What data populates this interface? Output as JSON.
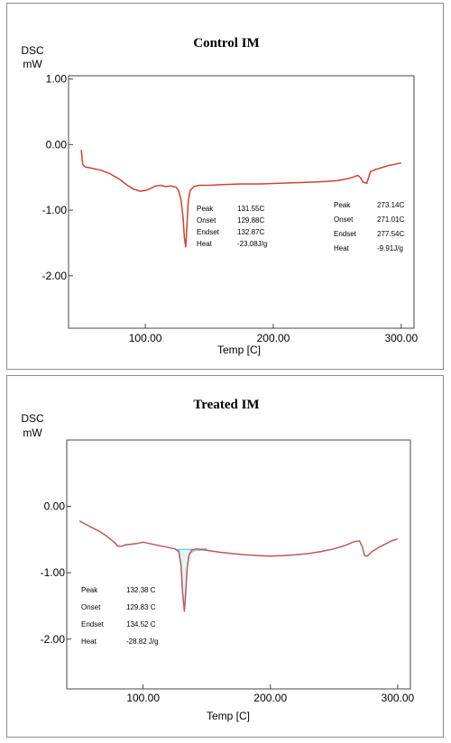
{
  "chart_data": [
    {
      "type": "line",
      "title": "Control IM",
      "ylabel": [
        "DSC",
        "mW"
      ],
      "xlabel": "Temp  [C]",
      "xlim": [
        40,
        310
      ],
      "ylim": [
        -2.8,
        1.05
      ],
      "x_ticks": [
        100,
        200,
        300
      ],
      "x_tick_labels": [
        "100.00",
        "200.00",
        "300.00"
      ],
      "y_ticks": [
        1,
        0,
        -1,
        -2
      ],
      "y_tick_labels": [
        "1.00",
        "0.00",
        "-1.00",
        "-2.00"
      ],
      "grid": false,
      "series": [
        {
          "color": "#d0422f",
          "x": [
            50,
            51,
            53,
            58,
            65,
            72,
            80,
            86,
            91,
            96,
            100,
            104,
            108,
            112,
            116,
            120,
            124,
            126,
            128,
            129.5,
            130.5,
            131.55,
            132.5,
            133.5,
            135,
            138,
            142,
            150,
            160,
            175,
            190,
            205,
            220,
            235,
            250,
            258,
            262,
            266,
            268,
            270,
            271.5,
            273.14,
            274.5,
            276,
            280,
            285,
            290,
            295,
            300
          ],
          "y": [
            -0.08,
            -0.3,
            -0.34,
            -0.36,
            -0.39,
            -0.44,
            -0.53,
            -0.62,
            -0.68,
            -0.71,
            -0.7,
            -0.67,
            -0.63,
            -0.62,
            -0.64,
            -0.63,
            -0.65,
            -0.7,
            -0.85,
            -1.12,
            -1.42,
            -1.56,
            -1.25,
            -0.88,
            -0.7,
            -0.64,
            -0.62,
            -0.62,
            -0.61,
            -0.6,
            -0.6,
            -0.59,
            -0.58,
            -0.57,
            -0.55,
            -0.52,
            -0.5,
            -0.47,
            -0.5,
            -0.57,
            -0.58,
            -0.59,
            -0.5,
            -0.41,
            -0.38,
            -0.35,
            -0.32,
            -0.3,
            -0.28
          ]
        }
      ],
      "annotations": [
        {
          "rows": [
            {
              "label": "Peak",
              "value": "131.55C"
            },
            {
              "label": "Onset",
              "value": "129.88C"
            },
            {
              "label": "Endset",
              "value": "132.87C"
            },
            {
              "label": "Heat",
              "value": "-23.08J/g"
            }
          ]
        },
        {
          "rows": [
            {
              "label": "Peak",
              "value": "273.14C"
            },
            {
              "label": "Onset",
              "value": "271.01C"
            },
            {
              "label": "Endset",
              "value": "277.54C"
            },
            {
              "label": "Heat",
              "value": "-9.91J/g"
            }
          ]
        }
      ]
    },
    {
      "type": "line",
      "title": "Treated IM",
      "ylabel": [
        "DSC",
        "mW"
      ],
      "xlabel": "Temp  [C]",
      "xlim": [
        40,
        310
      ],
      "ylim": [
        -2.75,
        1.0
      ],
      "x_ticks": [
        100,
        200,
        300
      ],
      "x_tick_labels": [
        "100.00",
        "200.00",
        "300.00"
      ],
      "y_ticks": [
        0,
        -1,
        -2
      ],
      "y_tick_labels": [
        "0.00",
        "-1.00",
        "-2.00"
      ],
      "grid": false,
      "series": [
        {
          "color": "#b85a5a",
          "x": [
            50,
            55,
            60,
            65,
            70,
            74,
            78,
            80,
            83,
            86,
            90,
            95,
            100,
            105,
            110,
            115,
            120,
            125,
            128,
            129.83,
            131,
            132.38,
            133.5,
            134.52,
            136,
            138,
            142,
            150,
            160,
            170,
            180,
            190,
            200,
            210,
            220,
            230,
            240,
            250,
            260,
            266,
            270,
            272,
            274,
            276,
            280,
            285,
            290,
            295,
            300
          ],
          "y": [
            -0.22,
            -0.27,
            -0.32,
            -0.37,
            -0.43,
            -0.49,
            -0.55,
            -0.6,
            -0.6,
            -0.58,
            -0.57,
            -0.56,
            -0.54,
            -0.56,
            -0.58,
            -0.6,
            -0.62,
            -0.64,
            -0.68,
            -0.9,
            -1.3,
            -1.58,
            -1.3,
            -0.95,
            -0.74,
            -0.66,
            -0.64,
            -0.66,
            -0.69,
            -0.71,
            -0.73,
            -0.74,
            -0.75,
            -0.74,
            -0.73,
            -0.71,
            -0.68,
            -0.64,
            -0.58,
            -0.53,
            -0.52,
            -0.6,
            -0.74,
            -0.75,
            -0.68,
            -0.62,
            -0.57,
            -0.52,
            -0.49
          ]
        }
      ],
      "baseline": {
        "color": "#6fc3e6",
        "x": [
          126,
          128,
          129.83,
          131,
          132.38,
          133.5,
          134.52,
          136,
          140,
          145,
          150
        ],
        "y": [
          -0.65,
          -0.66,
          -0.9,
          -1.3,
          -1.55,
          -1.3,
          -0.95,
          -0.72,
          -0.67,
          -0.66,
          -0.64
        ]
      },
      "annotations": [
        {
          "rows": [
            {
              "label": "Peak",
              "value": "132.38 C"
            },
            {
              "label": "Onset",
              "value": "129.83 C"
            },
            {
              "label": "Endset",
              "value": "134.52 C"
            },
            {
              "label": "Heat",
              "value": "-28.82 J/g"
            }
          ]
        }
      ]
    }
  ]
}
